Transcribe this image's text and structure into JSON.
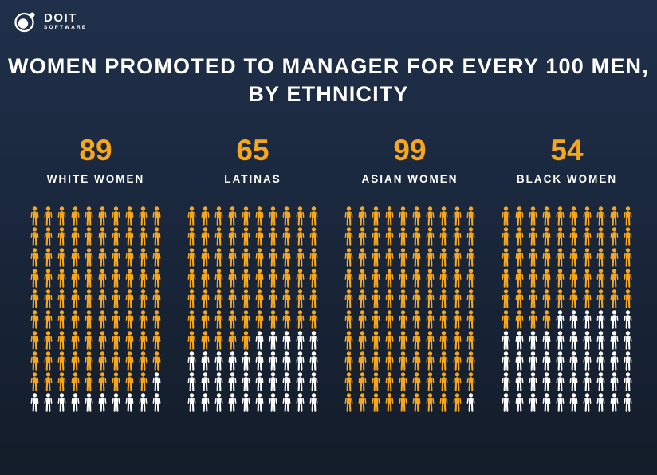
{
  "logo": {
    "brand": "DOIT",
    "sub": "SOFTWARE"
  },
  "title": {
    "line1": "WOMEN PROMOTED TO MANAGER FOR EVERY 100 MEN,",
    "line2": "BY ETHNICITY"
  },
  "chart_data": {
    "type": "pictogram",
    "title": "WOMEN PROMOTED TO MANAGER FOR EVERY 100 MEN, BY ETHNICITY",
    "unit": "women promoted to manager per 100 men",
    "grid": {
      "rows": 10,
      "cols": 10,
      "icons_per_category": 100
    },
    "categories": [
      "WHITE WOMEN",
      "LATINAS",
      "ASIAN WOMEN",
      "BLACK WOMEN"
    ],
    "values": [
      89,
      65,
      99,
      54
    ],
    "fill_order": "row-major from top-left",
    "icon": "person-icon",
    "legend": false,
    "colors": {
      "filled": "#F7A71C",
      "unfilled": "#FFFFFF"
    }
  },
  "colors": {
    "accent": "#F7A71C",
    "text": "#FFFFFF",
    "bg_top": "#20304A",
    "bg_bottom": "#131C29"
  }
}
